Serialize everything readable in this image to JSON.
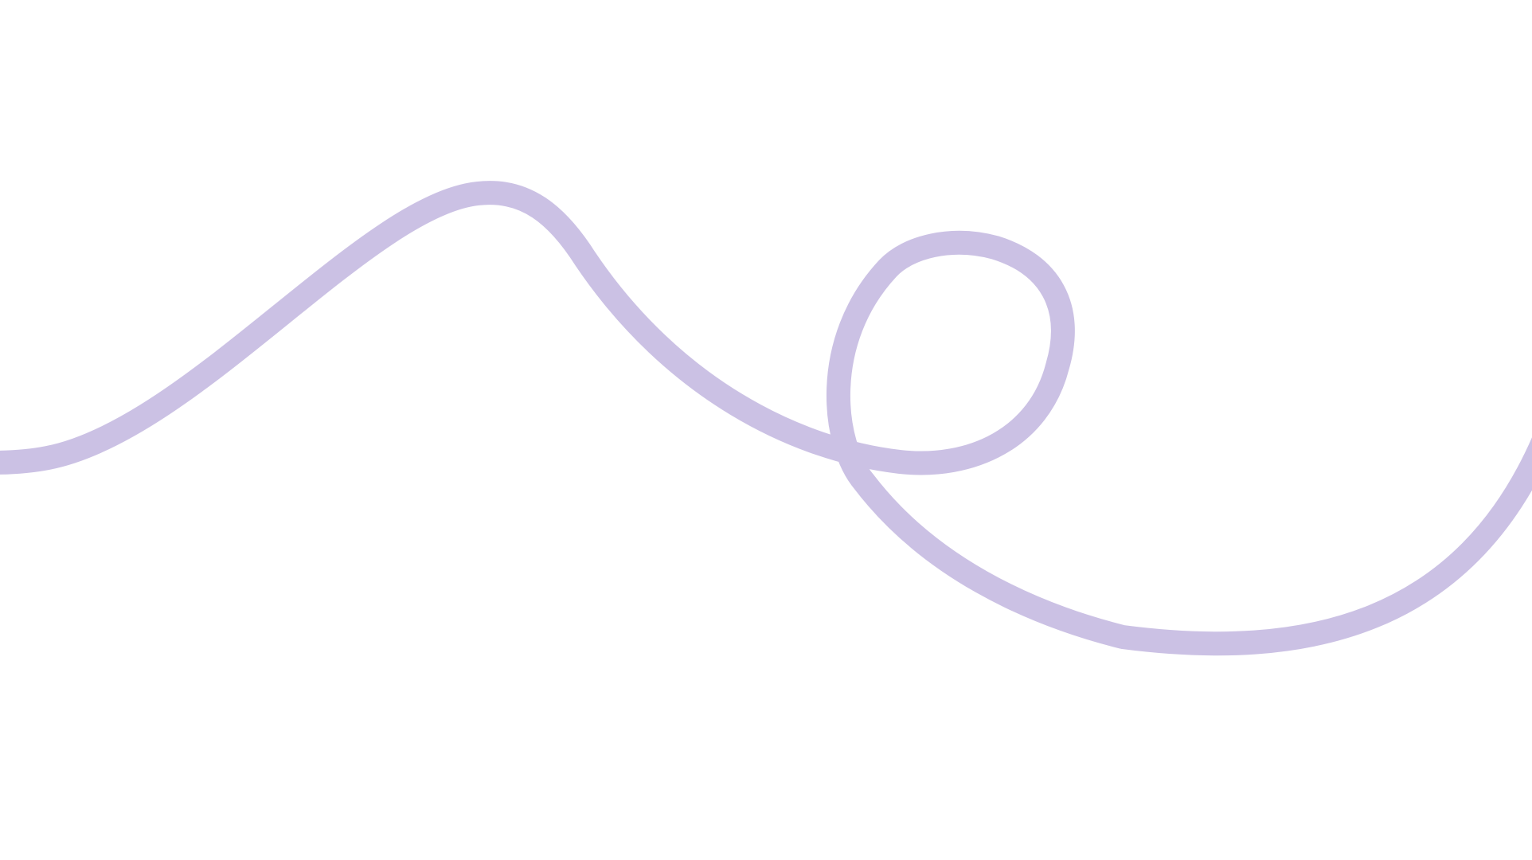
{
  "decoration": {
    "name": "squiggle-line",
    "stroke_color": "#cbc1e4",
    "background_color": "#ffffff"
  }
}
